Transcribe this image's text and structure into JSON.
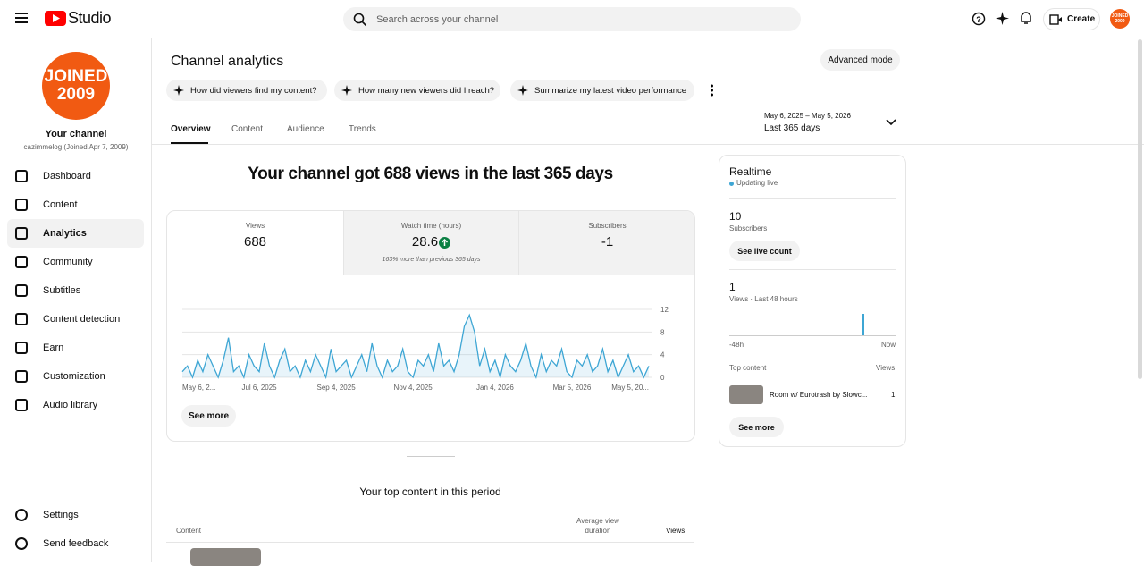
{
  "header": {
    "logo": "Studio",
    "search_placeholder": "Search across your channel",
    "create": "Create",
    "avatar_line1": "JOINED",
    "avatar_line2": "2009"
  },
  "sidebar": {
    "avatar_line1": "JOINED",
    "avatar_line2": "2009",
    "channel_title": "Your channel",
    "channel_sub": "cazimmelog (Joined Apr 7, 2009)",
    "nav": [
      "Dashboard",
      "Content",
      "Analytics",
      "Community",
      "Subtitles",
      "Content detection",
      "Earn",
      "Customization",
      "Audio library"
    ],
    "bottom_nav": [
      "Settings",
      "Send feedback"
    ]
  },
  "main": {
    "title": "Channel analytics",
    "advanced": "Advanced mode",
    "prompts": [
      "How did viewers find my content?",
      "How many new viewers did I reach?",
      "Summarize my latest video performance"
    ],
    "tabs": [
      "Overview",
      "Content",
      "Audience",
      "Trends"
    ],
    "date_range": "May 6, 2025 – May 5, 2026",
    "date_label": "Last 365 days",
    "headline": "Your channel got 688 views in the last 365 days",
    "metrics": [
      {
        "label": "Views",
        "value": 688
      },
      {
        "label": "Watch time (hours)",
        "value": 28.6,
        "note": "163% more than previous 365 days"
      },
      {
        "label": "Subscribers",
        "value": -1
      }
    ],
    "see_more": "See more",
    "top_content_title": "Your top content in this period",
    "table_headers": [
      "Content",
      "Average view duration",
      "Views"
    ]
  },
  "realtime": {
    "title": "Realtime",
    "status": "Updating live",
    "subscribers": 10,
    "subscribers_label": "Subscribers",
    "see_live": "See live count",
    "views": 1,
    "views_label": "Views · Last 48 hours",
    "axis_start": "-48h",
    "axis_end": "Now",
    "top_content": "Top content",
    "views_header": "Views",
    "items": [
      {
        "title": "Room w/ Eurotrash by Slowc...",
        "views": 1
      }
    ],
    "see_more": "See more"
  },
  "chart_data": {
    "type": "area",
    "color": "#3ea6d4",
    "categories": [
      "May 6, 2...",
      null,
      null,
      null,
      null,
      null,
      null,
      null,
      null,
      null,
      null,
      null,
      null,
      null,
      null,
      "Jul 6, 2025",
      null,
      null,
      null,
      null,
      null,
      null,
      null,
      null,
      null,
      null,
      null,
      null,
      null,
      null,
      "Sep 4, 2025",
      null,
      null,
      null,
      null,
      null,
      null,
      null,
      null,
      null,
      null,
      null,
      null,
      null,
      null,
      "Nov 4, 2025",
      null,
      null,
      null,
      null,
      null,
      null,
      null,
      null,
      null,
      null,
      null,
      null,
      null,
      null,
      null,
      "Jan 4, 2026",
      null,
      null,
      null,
      null,
      null,
      null,
      null,
      null,
      null,
      null,
      null,
      null,
      null,
      null,
      "Mar 5, 2026",
      null,
      null,
      null,
      null,
      null,
      null,
      null,
      null,
      null,
      null,
      null,
      null,
      null,
      null,
      "May 5, 20..."
    ],
    "values": [
      1,
      2,
      0,
      3,
      1,
      4,
      2,
      0,
      3,
      7,
      1,
      2,
      0,
      4,
      2,
      1,
      6,
      2,
      0,
      3,
      5,
      1,
      2,
      0,
      3,
      1,
      4,
      2,
      0,
      5,
      1,
      2,
      3,
      0,
      2,
      4,
      1,
      6,
      2,
      0,
      3,
      1,
      2,
      5,
      1,
      0,
      3,
      2,
      4,
      1,
      6,
      2,
      3,
      1,
      4,
      9,
      11,
      8,
      2,
      5,
      1,
      3,
      0,
      4,
      2,
      1,
      3,
      6,
      2,
      0,
      4,
      1,
      3,
      2,
      5,
      1,
      0,
      3,
      2,
      4,
      1,
      2,
      5,
      1,
      3,
      0,
      2,
      4,
      1,
      2,
      0,
      2
    ],
    "ylim": [
      0,
      12
    ],
    "yticks": [
      0,
      4,
      8,
      12
    ],
    "grid": true
  }
}
